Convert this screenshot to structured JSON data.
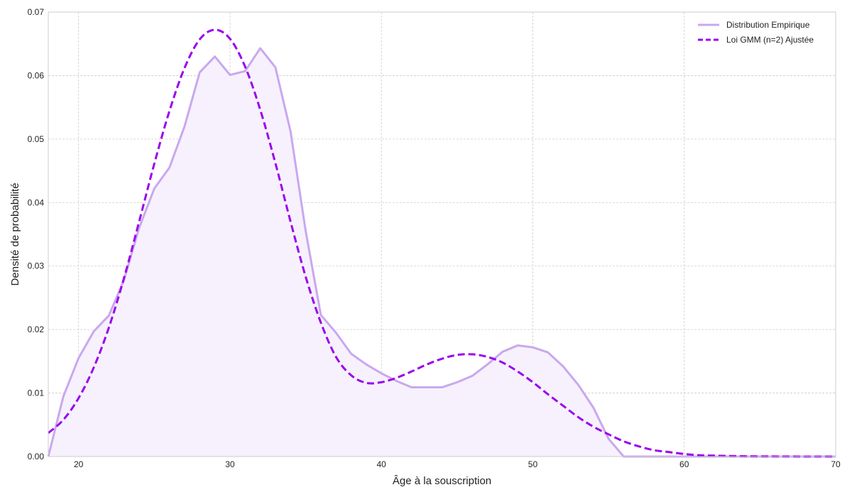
{
  "chart_data": {
    "type": "line",
    "title": "",
    "xlabel": "Âge à la souscription",
    "ylabel": "Densité de probabilité",
    "xlim": [
      18,
      70
    ],
    "ylim": [
      0,
      0.07
    ],
    "xticks": [
      20,
      30,
      40,
      50,
      60,
      70
    ],
    "yticks": [
      0.0,
      0.01,
      0.02,
      0.03,
      0.04,
      0.05,
      0.06,
      0.07
    ],
    "ytick_labels": [
      "0.00",
      "0.01",
      "0.02",
      "0.03",
      "0.04",
      "0.05",
      "0.06",
      "0.07"
    ],
    "grid": true,
    "legend_position": "top-right",
    "series": [
      {
        "name": "Distribution Empirique",
        "style": "solid",
        "filled": true,
        "color": "#c9a8ee",
        "fill_color": "#f6f1fc",
        "x": [
          18,
          19,
          20,
          21,
          22,
          23,
          24,
          25,
          26,
          27,
          28,
          29,
          30,
          31,
          32,
          33,
          34,
          35,
          36,
          37,
          38,
          39,
          40,
          41,
          42,
          43,
          44,
          45,
          46,
          47,
          48,
          49,
          50,
          51,
          52,
          53,
          54,
          55,
          56,
          57,
          58,
          59,
          60,
          61,
          62,
          63,
          64,
          65,
          66,
          67,
          68,
          69,
          70
        ],
        "y": [
          0.0,
          0.0095,
          0.0155,
          0.0197,
          0.0222,
          0.0278,
          0.036,
          0.0422,
          0.0455,
          0.052,
          0.0605,
          0.063,
          0.0601,
          0.0607,
          0.0643,
          0.0613,
          0.0512,
          0.0355,
          0.0223,
          0.0195,
          0.0162,
          0.0145,
          0.0131,
          0.0119,
          0.0109,
          0.0109,
          0.0109,
          0.0117,
          0.0127,
          0.0145,
          0.0165,
          0.0175,
          0.0172,
          0.0164,
          0.0142,
          0.0113,
          0.0077,
          0.0028,
          0.0,
          0.0,
          0.0,
          0.0,
          0.0,
          0.0,
          0.0,
          0.0,
          0.0,
          0.0,
          0.0,
          0.0,
          0.0,
          0.0,
          0.0
        ]
      },
      {
        "name": "Loi GMM (n=2) Ajustée",
        "style": "dashed",
        "filled": false,
        "color": "#9b00ee",
        "x": [
          18,
          19,
          20,
          21,
          22,
          23,
          24,
          25,
          26,
          27,
          28,
          29,
          30,
          31,
          32,
          33,
          34,
          35,
          36,
          37,
          38,
          39,
          40,
          41,
          42,
          43,
          44,
          45,
          46,
          47,
          48,
          49,
          50,
          51,
          52,
          53,
          54,
          55,
          56,
          57,
          58,
          59,
          60,
          61,
          62,
          63,
          64,
          65,
          66,
          67,
          68,
          69,
          70
        ],
        "y": [
          0.0037,
          0.0058,
          0.0092,
          0.014,
          0.0203,
          0.0281,
          0.037,
          0.0461,
          0.0544,
          0.0612,
          0.0657,
          0.0672,
          0.0658,
          0.0614,
          0.0546,
          0.0462,
          0.037,
          0.0283,
          0.0211,
          0.0157,
          0.0128,
          0.0116,
          0.0117,
          0.0124,
          0.0134,
          0.0145,
          0.0154,
          0.016,
          0.0161,
          0.0157,
          0.0148,
          0.0134,
          0.0117,
          0.0098,
          0.008,
          0.0062,
          0.0047,
          0.0035,
          0.0024,
          0.0016,
          0.001,
          0.0007,
          0.0004,
          0.0002,
          0.00014,
          8e-05,
          5e-05,
          3e-05,
          2e-05,
          1e-05,
          0.0,
          0.0,
          0.0
        ]
      }
    ]
  }
}
